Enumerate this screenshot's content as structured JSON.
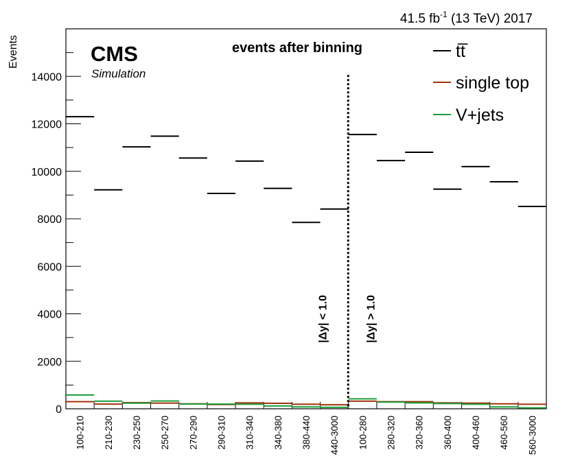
{
  "header": {
    "lumi_value": "41.5 fb",
    "lumi_exp": "-1",
    "lumi_rest": " (13 TeV) 2017"
  },
  "brand": {
    "title": "CMS",
    "subtitle": "Simulation"
  },
  "chart_data": {
    "type": "bar",
    "style": "histogram-steps",
    "title": "events after binning",
    "ylabel": "Events",
    "xlabel": "",
    "ylim": [
      0,
      16000
    ],
    "yticks": [
      0,
      2000,
      4000,
      6000,
      8000,
      10000,
      12000,
      14000
    ],
    "grid": false,
    "legend_position": "top-right",
    "categories": [
      "100-210",
      "210-230",
      "230-250",
      "250-270",
      "270-290",
      "290-310",
      "310-340",
      "340-380",
      "380-440",
      "440-3000",
      "100-280",
      "280-320",
      "320-360",
      "360-400",
      "400-460",
      "460-560",
      "560-3000"
    ],
    "series": [
      {
        "name": "tt̅",
        "color": "#000000",
        "values": [
          12300,
          9220,
          11030,
          11480,
          10560,
          9070,
          10430,
          9280,
          7850,
          8410,
          11550,
          10450,
          10800,
          9250,
          10200,
          9560,
          8520
        ]
      },
      {
        "name": "single top",
        "color": "#a0320a",
        "values": [
          300,
          200,
          260,
          240,
          210,
          180,
          250,
          230,
          190,
          170,
          320,
          300,
          300,
          250,
          240,
          210,
          190
        ]
      },
      {
        "name": "V+jets",
        "color": "#1a9e3a",
        "values": [
          580,
          320,
          240,
          330,
          200,
          200,
          190,
          120,
          80,
          60,
          420,
          280,
          250,
          220,
          190,
          80,
          40
        ]
      }
    ],
    "divider_after_index": 9,
    "region_labels": [
      "|Δy| < 1.0",
      "|Δy| > 1.0"
    ]
  }
}
